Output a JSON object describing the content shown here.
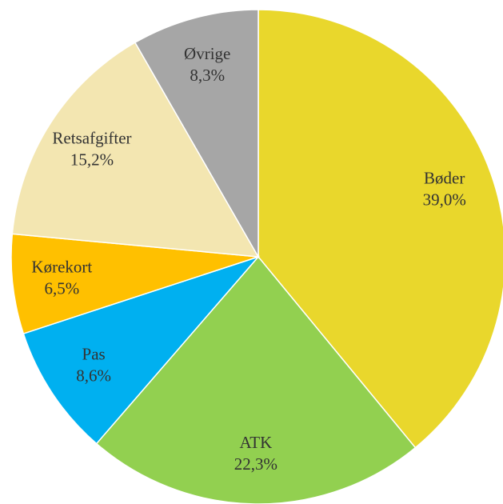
{
  "chart_data": {
    "type": "pie",
    "categories": [
      "Bøder",
      "ATK",
      "Pas",
      "Kørekort",
      "Retsafgifter",
      "Øvrige"
    ],
    "values": [
      39.0,
      22.3,
      8.6,
      6.5,
      15.2,
      8.3
    ],
    "value_labels": [
      "39,0%",
      "22,3%",
      "8,6%",
      "6,5%",
      "15,2%",
      "8,3%"
    ],
    "colors": [
      "#e9d72c",
      "#92d050",
      "#00b0f0",
      "#ffc000",
      "#f3e6b1",
      "#a6a6a6"
    ]
  }
}
